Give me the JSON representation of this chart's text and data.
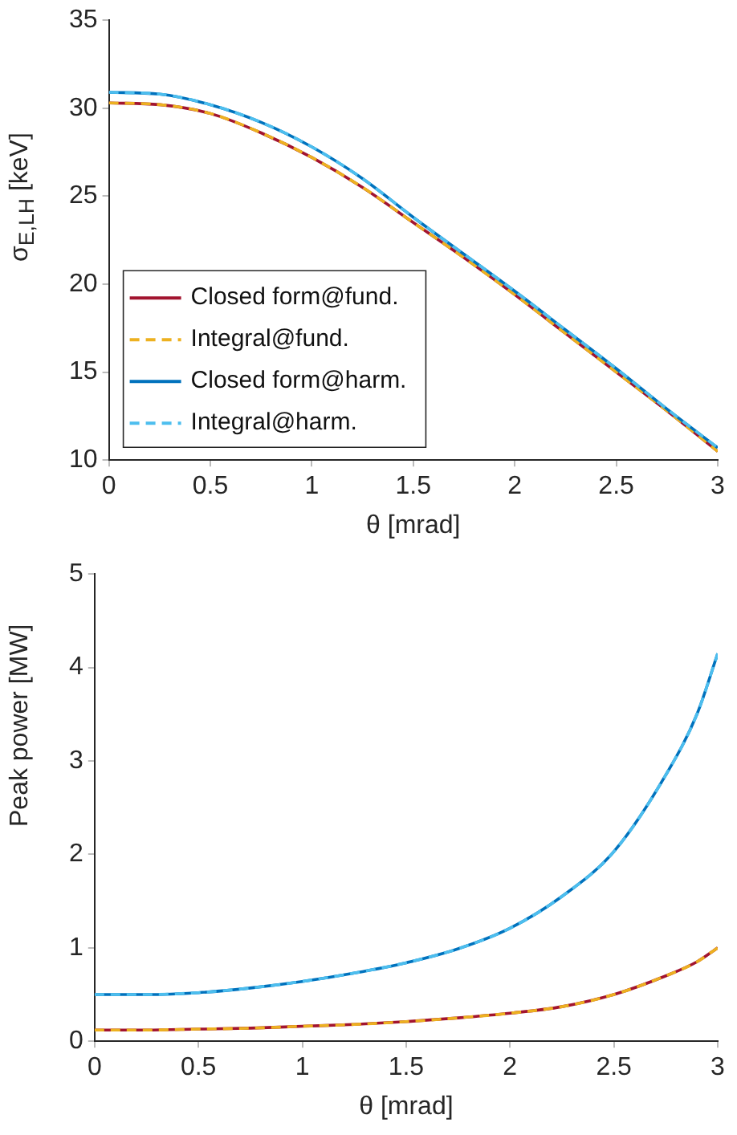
{
  "chart_data": [
    {
      "type": "line",
      "xlabel": "θ [mrad]",
      "ylabel": "σ$_{E,LH}$ [keV]",
      "xlim": [
        0,
        3
      ],
      "ylim": [
        10,
        35
      ],
      "xticks": [
        0,
        0.5,
        1,
        1.5,
        2,
        2.5,
        3
      ],
      "yticks": [
        10,
        15,
        20,
        25,
        30,
        35
      ],
      "grid": false,
      "legend": "bottom left",
      "marker": "none",
      "x": [
        0,
        0.25,
        0.5,
        0.75,
        1,
        1.25,
        1.5,
        1.75,
        2,
        2.25,
        2.5,
        2.75,
        3
      ],
      "series": [
        {
          "name": "Closed form@fund.",
          "color": "#a2142f",
          "line_style": "solid",
          "values": [
            30.3,
            30.2,
            29.7,
            28.6,
            27.2,
            25.5,
            23.5,
            21.5,
            19.4,
            17.2,
            15.0,
            12.8,
            10.5
          ]
        },
        {
          "name": "Integral@fund.",
          "color": "#edb120",
          "line_style": "dashed",
          "values": [
            30.3,
            30.2,
            29.7,
            28.6,
            27.2,
            25.5,
            23.5,
            21.5,
            19.4,
            17.2,
            15.0,
            12.8,
            10.5
          ]
        },
        {
          "name": "Closed form@harm.",
          "color": "#0072bd",
          "line_style": "solid",
          "values": [
            30.9,
            30.8,
            30.2,
            29.2,
            27.8,
            26.0,
            23.8,
            21.7,
            19.6,
            17.4,
            15.2,
            12.9,
            10.7
          ]
        },
        {
          "name": "Integral@harm.",
          "color": "#4dbeee",
          "line_style": "dashed",
          "values": [
            30.9,
            30.8,
            30.2,
            29.2,
            27.8,
            26.0,
            23.8,
            21.7,
            19.6,
            17.4,
            15.2,
            12.9,
            10.7
          ]
        }
      ]
    },
    {
      "type": "line",
      "xlabel": "θ [mrad]",
      "ylabel": "Peak power [MW]",
      "xlim": [
        0,
        3
      ],
      "ylim": [
        0,
        5
      ],
      "xticks": [
        0,
        0.5,
        1,
        1.5,
        2,
        2.5,
        3
      ],
      "yticks": [
        0,
        1,
        2,
        3,
        4,
        5
      ],
      "grid": false,
      "marker": "none",
      "x": [
        0,
        0.25,
        0.5,
        0.75,
        1,
        1.25,
        1.5,
        1.75,
        2,
        2.25,
        2.5,
        2.75,
        2.9,
        3
      ],
      "series": [
        {
          "color": "#a2142f",
          "line_style": "solid",
          "values": [
            0.12,
            0.12,
            0.13,
            0.14,
            0.16,
            0.18,
            0.21,
            0.25,
            0.3,
            0.37,
            0.5,
            0.7,
            0.85,
            1.0
          ]
        },
        {
          "color": "#edb120",
          "line_style": "dashed",
          "values": [
            0.12,
            0.12,
            0.13,
            0.14,
            0.16,
            0.18,
            0.21,
            0.25,
            0.3,
            0.37,
            0.5,
            0.7,
            0.85,
            1.0
          ]
        },
        {
          "color": "#0072bd",
          "line_style": "solid",
          "values": [
            0.5,
            0.5,
            0.52,
            0.57,
            0.64,
            0.73,
            0.84,
            0.99,
            1.21,
            1.55,
            2.03,
            2.85,
            3.5,
            4.15
          ]
        },
        {
          "color": "#4dbeee",
          "line_style": "dashed",
          "values": [
            0.5,
            0.5,
            0.52,
            0.57,
            0.64,
            0.73,
            0.84,
            0.99,
            1.21,
            1.55,
            2.03,
            2.85,
            3.5,
            4.15
          ]
        }
      ]
    }
  ]
}
